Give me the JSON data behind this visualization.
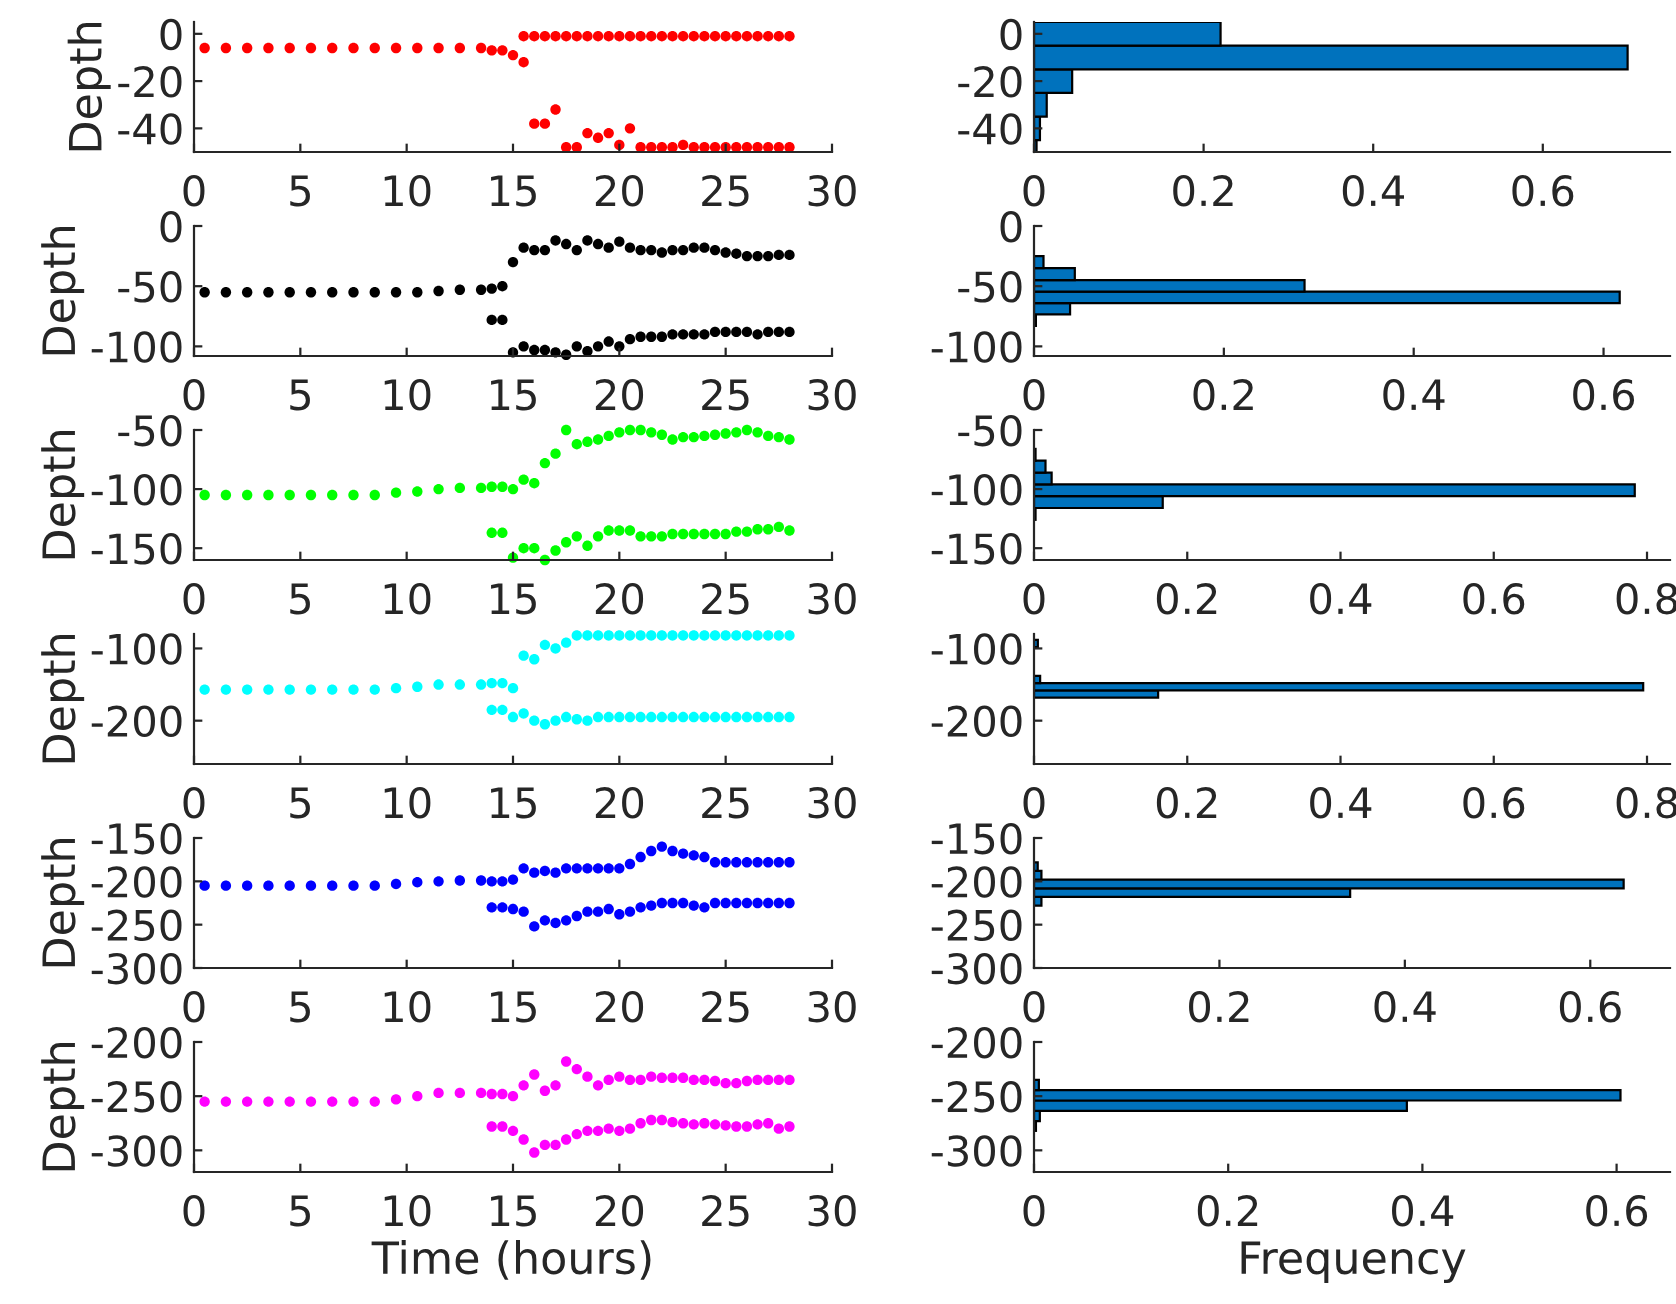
{
  "chart_data": [
    {
      "type": "scatter",
      "ylabel": "Depth",
      "marker": "circle",
      "xlim": [
        0,
        30
      ],
      "xticks": [
        0,
        5,
        10,
        15,
        20,
        25,
        30
      ],
      "ylim": [
        -50,
        5
      ],
      "yticks": [
        -40,
        -20,
        0
      ],
      "series": [
        {
          "color": "#ff0000",
          "x": [
            0.5,
            1.5,
            2.5,
            3.5,
            4.5,
            5.5,
            6.5,
            7.5,
            8.5,
            9.5,
            10.5,
            11.5,
            12.5,
            13.5,
            14,
            14.5,
            15,
            15.5,
            15.5,
            16,
            16,
            16.5,
            16.5,
            17,
            17,
            17.5,
            17.5,
            18,
            18,
            18.5,
            18.5,
            19,
            19,
            19.5,
            19.5,
            20,
            20,
            20.5,
            20.5,
            21,
            21,
            21.5,
            21.5,
            22,
            22,
            22.5,
            22.5,
            23,
            23,
            23.5,
            23.5,
            24,
            24,
            24.5,
            24.5,
            25,
            25,
            25.5,
            25.5,
            26,
            26,
            26.5,
            26.5,
            27,
            27,
            27.5,
            27.5,
            28,
            28
          ],
          "values": [
            -6,
            -6,
            -6,
            -6,
            -6,
            -6,
            -6,
            -6,
            -6,
            -6,
            -6,
            -6,
            -6,
            -6,
            -7,
            -7,
            -9,
            -1,
            -12,
            -1,
            -38,
            -1,
            -38,
            -1,
            -32,
            -1,
            -48,
            -1,
            -48,
            -1,
            -42,
            -1,
            -44,
            -1,
            -42,
            -1,
            -47,
            -1,
            -40,
            -1,
            -48,
            -1,
            -48,
            -1,
            -48,
            -1,
            -48,
            -1,
            -47,
            -1,
            -48,
            -1,
            -48,
            -1,
            -48,
            -1,
            -48,
            -1,
            -48,
            -1,
            -48,
            -1,
            -48,
            -1,
            -48,
            -1,
            -48,
            -1,
            -48
          ]
        }
      ]
    },
    {
      "type": "histogram",
      "orientation": "horizontal",
      "color": "#0072bd",
      "xlim": [
        0,
        0.75
      ],
      "xticks": [
        0,
        0.2,
        0.4,
        0.6
      ],
      "ylim": [
        -50,
        5
      ],
      "yticks": [
        -40,
        -20,
        0
      ],
      "bins": [
        -50,
        -45,
        -35,
        -25,
        -15,
        -5,
        5
      ],
      "values": [
        0.003,
        0.007,
        0.015,
        0.045,
        0.7,
        0.22
      ]
    },
    {
      "type": "scatter",
      "ylabel": "Depth",
      "marker": "circle",
      "xlim": [
        0,
        30
      ],
      "xticks": [
        0,
        5,
        10,
        15,
        20,
        25,
        30
      ],
      "ylim": [
        -108,
        0
      ],
      "yticks": [
        -100,
        -50,
        0
      ],
      "series": [
        {
          "color": "#000000",
          "x": [
            0.5,
            1.5,
            2.5,
            3.5,
            4.5,
            5.5,
            6.5,
            7.5,
            8.5,
            9.5,
            10.5,
            11.5,
            12.5,
            13.5,
            14,
            14,
            14.5,
            14.5,
            15,
            15,
            15.5,
            15.5,
            16,
            16,
            16.5,
            16.5,
            17,
            17,
            17.5,
            17.5,
            18,
            18,
            18.5,
            18.5,
            19,
            19,
            19.5,
            19.5,
            20,
            20,
            20.5,
            20.5,
            21,
            21,
            21.5,
            21.5,
            22,
            22,
            22.5,
            22.5,
            23,
            23,
            23.5,
            23.5,
            24,
            24,
            24.5,
            24.5,
            25,
            25,
            25.5,
            25.5,
            26,
            26,
            26.5,
            26.5,
            27,
            27,
            27.5,
            27.5,
            28,
            28
          ],
          "values": [
            -55,
            -55,
            -55,
            -55,
            -55,
            -55,
            -55,
            -55,
            -55,
            -55,
            -55,
            -54,
            -53,
            -53,
            -52,
            -78,
            -50,
            -78,
            -30,
            -105,
            -18,
            -100,
            -20,
            -103,
            -20,
            -103,
            -12,
            -105,
            -15,
            -107,
            -20,
            -100,
            -12,
            -104,
            -15,
            -100,
            -18,
            -96,
            -13,
            -100,
            -18,
            -94,
            -20,
            -92,
            -20,
            -92,
            -22,
            -92,
            -20,
            -90,
            -20,
            -90,
            -18,
            -90,
            -18,
            -90,
            -20,
            -88,
            -22,
            -88,
            -23,
            -88,
            -25,
            -88,
            -25,
            -90,
            -25,
            -88,
            -24,
            -88,
            -24,
            -88
          ]
        }
      ]
    },
    {
      "type": "histogram",
      "orientation": "horizontal",
      "color": "#0072bd",
      "xlim": [
        0,
        0.67
      ],
      "xticks": [
        0,
        0.2,
        0.4,
        0.6
      ],
      "ylim": [
        -108,
        0
      ],
      "yticks": [
        -100,
        -50,
        0
      ],
      "bins": [
        -83,
        -73.5,
        -64,
        -54.5,
        -45,
        -35,
        -25
      ],
      "values": [
        0.002,
        0.038,
        0.617,
        0.285,
        0.043,
        0.01
      ]
    },
    {
      "type": "scatter",
      "ylabel": "Depth",
      "marker": "circle",
      "xlim": [
        0,
        30
      ],
      "xticks": [
        0,
        5,
        10,
        15,
        20,
        25,
        30
      ],
      "ylim": [
        -160,
        -50
      ],
      "yticks": [
        -150,
        -100,
        -50
      ],
      "series": [
        {
          "color": "#00ff00",
          "x": [
            0.5,
            1.5,
            2.5,
            3.5,
            4.5,
            5.5,
            6.5,
            7.5,
            8.5,
            9.5,
            10.5,
            11.5,
            12.5,
            13.5,
            14,
            14,
            14.5,
            14.5,
            15,
            15,
            15.5,
            15.5,
            16,
            16,
            16.5,
            16.5,
            17,
            17,
            17.5,
            17.5,
            18,
            18,
            18.5,
            18.5,
            19,
            19,
            19.5,
            19.5,
            20,
            20,
            20.5,
            20.5,
            21,
            21,
            21.5,
            21.5,
            22,
            22,
            22.5,
            22.5,
            23,
            23,
            23.5,
            23.5,
            24,
            24,
            24.5,
            24.5,
            25,
            25,
            25.5,
            25.5,
            26,
            26,
            26.5,
            26.5,
            27,
            27,
            27.5,
            27.5,
            28,
            28
          ],
          "values": [
            -105,
            -105,
            -105,
            -105,
            -105,
            -105,
            -105,
            -105,
            -105,
            -103,
            -102,
            -100,
            -99,
            -99,
            -98,
            -137,
            -98,
            -137,
            -100,
            -158,
            -92,
            -150,
            -95,
            -150,
            -78,
            -160,
            -70,
            -152,
            -50,
            -145,
            -62,
            -140,
            -60,
            -148,
            -58,
            -140,
            -55,
            -135,
            -52,
            -135,
            -50,
            -135,
            -50,
            -140,
            -52,
            -140,
            -54,
            -140,
            -58,
            -138,
            -56,
            -138,
            -56,
            -138,
            -55,
            -138,
            -54,
            -138,
            -53,
            -138,
            -52,
            -136,
            -50,
            -136,
            -52,
            -134,
            -55,
            -134,
            -56,
            -132,
            -58,
            -135
          ]
        }
      ]
    },
    {
      "type": "histogram",
      "orientation": "horizontal",
      "color": "#0072bd",
      "xlim": [
        0,
        0.83
      ],
      "xticks": [
        0,
        0.2,
        0.4,
        0.6,
        0.8
      ],
      "ylim": [
        -160,
        -50
      ],
      "yticks": [
        -150,
        -100,
        -50
      ],
      "bins": [
        -126,
        -116,
        -106,
        -96,
        -86,
        -76,
        -66
      ],
      "values": [
        0.002,
        0.168,
        0.784,
        0.023,
        0.015,
        0.002
      ]
    },
    {
      "type": "scatter",
      "ylabel": "Depth",
      "marker": "circle",
      "xlim": [
        0,
        30
      ],
      "xticks": [
        0,
        5,
        10,
        15,
        20,
        25,
        30
      ],
      "ylim": [
        -260,
        -80
      ],
      "yticks": [
        -200,
        -100
      ],
      "series": [
        {
          "color": "#00ffff",
          "x": [
            0.5,
            1.5,
            2.5,
            3.5,
            4.5,
            5.5,
            6.5,
            7.5,
            8.5,
            9.5,
            10.5,
            11.5,
            12.5,
            13.5,
            14,
            14,
            14.5,
            14.5,
            15,
            15,
            15.5,
            15.5,
            16,
            16,
            16.5,
            16.5,
            17,
            17,
            17.5,
            17.5,
            18,
            18,
            18.5,
            18.5,
            19,
            19,
            19.5,
            19.5,
            20,
            20,
            20.5,
            20.5,
            21,
            21,
            21.5,
            21.5,
            22,
            22,
            22.5,
            22.5,
            23,
            23,
            23.5,
            23.5,
            24,
            24,
            24.5,
            24.5,
            25,
            25,
            25.5,
            25.5,
            26,
            26,
            26.5,
            26.5,
            27,
            27,
            27.5,
            27.5,
            28,
            28
          ],
          "values": [
            -157,
            -157,
            -157,
            -157,
            -157,
            -157,
            -157,
            -157,
            -157,
            -155,
            -153,
            -150,
            -150,
            -150,
            -148,
            -185,
            -148,
            -185,
            -155,
            -195,
            -110,
            -190,
            -115,
            -200,
            -95,
            -205,
            -100,
            -200,
            -92,
            -195,
            -82,
            -198,
            -82,
            -200,
            -82,
            -195,
            -82,
            -195,
            -82,
            -195,
            -82,
            -195,
            -82,
            -195,
            -82,
            -195,
            -82,
            -195,
            -82,
            -195,
            -82,
            -195,
            -82,
            -195,
            -82,
            -195,
            -82,
            -195,
            -82,
            -195,
            -82,
            -195,
            -82,
            -195,
            -82,
            -195,
            -82,
            -195,
            -82,
            -195,
            -82,
            -195
          ]
        }
      ]
    },
    {
      "type": "histogram",
      "orientation": "horizontal",
      "color": "#0072bd",
      "xlim": [
        0,
        0.83
      ],
      "xticks": [
        0,
        0.2,
        0.4,
        0.6,
        0.8
      ],
      "ylim": [
        -260,
        -80
      ],
      "yticks": [
        -200,
        -100
      ],
      "bins": [
        -168,
        -158,
        -148,
        -138,
        -128,
        -118,
        -108,
        -98,
        -88
      ],
      "values": [
        0.162,
        0.795,
        0.008,
        0,
        0,
        0,
        0,
        0.005
      ]
    },
    {
      "type": "scatter",
      "ylabel": "Depth",
      "marker": "circle",
      "xlim": [
        0,
        30
      ],
      "xticks": [
        0,
        5,
        10,
        15,
        20,
        25,
        30
      ],
      "ylim": [
        -300,
        -150
      ],
      "yticks": [
        -300,
        -250,
        -200,
        -150
      ],
      "series": [
        {
          "color": "#0000ff",
          "x": [
            0.5,
            1.5,
            2.5,
            3.5,
            4.5,
            5.5,
            6.5,
            7.5,
            8.5,
            9.5,
            10.5,
            11.5,
            12.5,
            13.5,
            14,
            14,
            14.5,
            14.5,
            15,
            15,
            15.5,
            15.5,
            16,
            16,
            16.5,
            16.5,
            17,
            17,
            17.5,
            17.5,
            18,
            18,
            18.5,
            18.5,
            19,
            19,
            19.5,
            19.5,
            20,
            20,
            20.5,
            20.5,
            21,
            21,
            21.5,
            21.5,
            22,
            22,
            22.5,
            22.5,
            23,
            23,
            23.5,
            23.5,
            24,
            24,
            24.5,
            24.5,
            25,
            25,
            25.5,
            25.5,
            26,
            26,
            26.5,
            26.5,
            27,
            27,
            27.5,
            27.5,
            28,
            28
          ],
          "values": [
            -205,
            -205,
            -205,
            -205,
            -205,
            -205,
            -205,
            -205,
            -205,
            -203,
            -201,
            -200,
            -199,
            -199,
            -200,
            -230,
            -200,
            -230,
            -198,
            -232,
            -185,
            -235,
            -190,
            -252,
            -188,
            -245,
            -190,
            -248,
            -185,
            -245,
            -185,
            -240,
            -185,
            -235,
            -185,
            -235,
            -185,
            -232,
            -185,
            -238,
            -180,
            -235,
            -172,
            -230,
            -165,
            -228,
            -160,
            -225,
            -165,
            -225,
            -168,
            -225,
            -170,
            -228,
            -172,
            -230,
            -178,
            -225,
            -178,
            -225,
            -178,
            -225,
            -178,
            -225,
            -178,
            -225,
            -178,
            -225,
            -178,
            -225,
            -178,
            -225
          ]
        }
      ]
    },
    {
      "type": "histogram",
      "orientation": "horizontal",
      "color": "#0072bd",
      "xlim": [
        0,
        0.686
      ],
      "xticks": [
        0,
        0.2,
        0.4,
        0.6
      ],
      "ylim": [
        -300,
        -150
      ],
      "yticks": [
        -300,
        -250,
        -200,
        -150
      ],
      "bins": [
        -228,
        -218,
        -208,
        -198,
        -188,
        -178
      ],
      "values": [
        0.008,
        0.341,
        0.636,
        0.008,
        0.004
      ]
    },
    {
      "type": "scatter",
      "ylabel": "Depth",
      "xlabel": "Time (hours)",
      "marker": "circle",
      "xlim": [
        0,
        30
      ],
      "xticks": [
        0,
        5,
        10,
        15,
        20,
        25,
        30
      ],
      "ylim": [
        -320,
        -200
      ],
      "yticks": [
        -300,
        -250,
        -200
      ],
      "series": [
        {
          "color": "#ff00ff",
          "x": [
            0.5,
            1.5,
            2.5,
            3.5,
            4.5,
            5.5,
            6.5,
            7.5,
            8.5,
            9.5,
            10.5,
            11.5,
            12.5,
            13.5,
            14,
            14,
            14.5,
            14.5,
            15,
            15,
            15.5,
            15.5,
            16,
            16,
            16.5,
            16.5,
            17,
            17,
            17.5,
            17.5,
            18,
            18,
            18.5,
            18.5,
            19,
            19,
            19.5,
            19.5,
            20,
            20,
            20.5,
            20.5,
            21,
            21,
            21.5,
            21.5,
            22,
            22,
            22.5,
            22.5,
            23,
            23,
            23.5,
            23.5,
            24,
            24,
            24.5,
            24.5,
            25,
            25,
            25.5,
            25.5,
            26,
            26,
            26.5,
            26.5,
            27,
            27,
            27.5,
            27.5,
            28,
            28
          ],
          "values": [
            -255,
            -255,
            -255,
            -255,
            -255,
            -255,
            -255,
            -255,
            -255,
            -253,
            -250,
            -247,
            -247,
            -247,
            -248,
            -278,
            -248,
            -278,
            -250,
            -282,
            -240,
            -290,
            -230,
            -302,
            -245,
            -295,
            -240,
            -295,
            -218,
            -290,
            -225,
            -285,
            -232,
            -282,
            -240,
            -282,
            -235,
            -280,
            -232,
            -282,
            -235,
            -280,
            -235,
            -275,
            -232,
            -272,
            -233,
            -272,
            -233,
            -274,
            -233,
            -275,
            -235,
            -276,
            -235,
            -275,
            -236,
            -276,
            -238,
            -277,
            -238,
            -278,
            -236,
            -278,
            -235,
            -276,
            -235,
            -275,
            -235,
            -280,
            -235,
            -278
          ]
        }
      ]
    },
    {
      "type": "histogram",
      "orientation": "horizontal",
      "xlabel": "Frequency",
      "color": "#0072bd",
      "xlim": [
        0,
        0.655
      ],
      "xticks": [
        0,
        0.2,
        0.4,
        0.6
      ],
      "ylim": [
        -320,
        -200
      ],
      "yticks": [
        -300,
        -250,
        -200
      ],
      "bins": [
        -282,
        -273,
        -263.5,
        -254,
        -244.5,
        -235
      ],
      "values": [
        0.002,
        0.006,
        0.384,
        0.604,
        0.005
      ]
    }
  ]
}
